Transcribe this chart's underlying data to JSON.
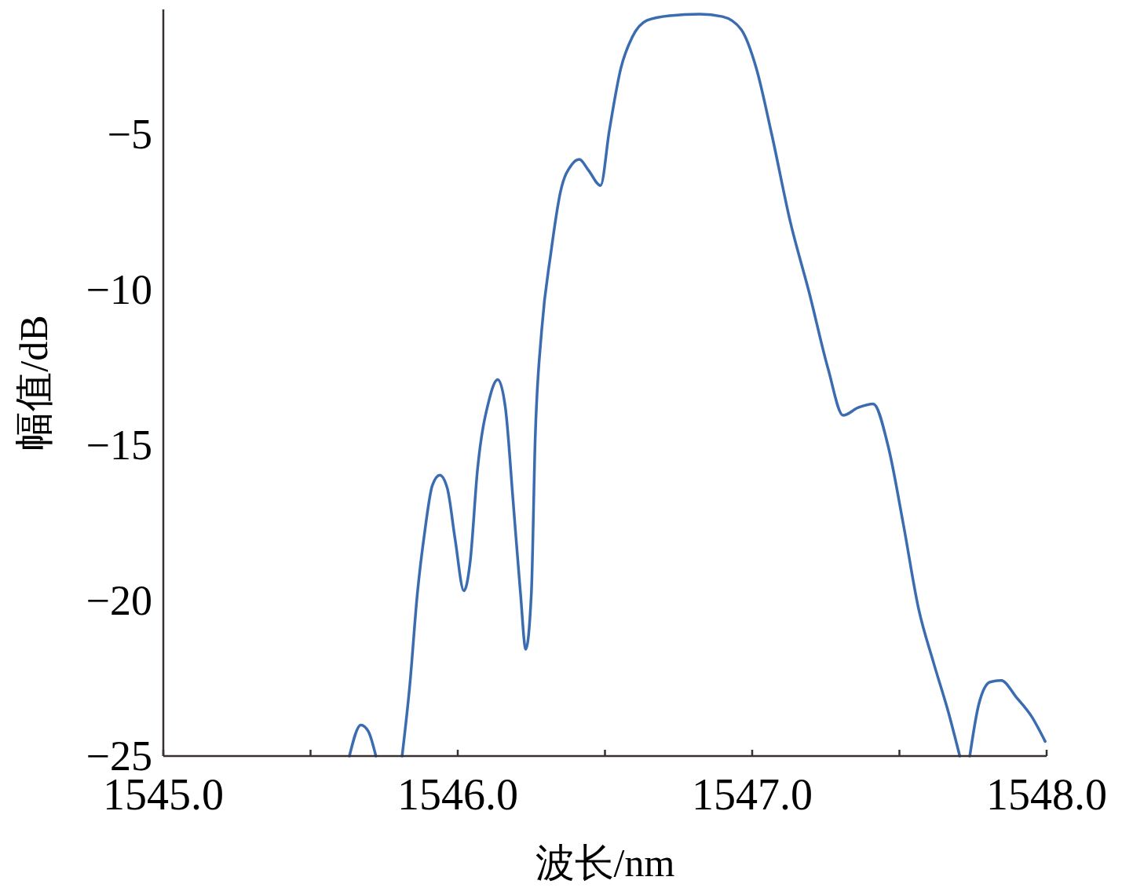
{
  "chart_data": {
    "type": "line",
    "xlabel": "波长/nm",
    "ylabel": "幅值/dB",
    "xlim": [
      1545.0,
      1548.0
    ],
    "ylim": [
      -25,
      -1
    ],
    "xticks": [
      {
        "value": 1545,
        "label": "1545.0"
      },
      {
        "value": 1545.5,
        "label": null
      },
      {
        "value": 1546,
        "label": "1546.0"
      },
      {
        "value": 1546.5,
        "label": null
      },
      {
        "value": 1547,
        "label": "1547.0"
      },
      {
        "value": 1547.5,
        "label": null
      },
      {
        "value": 1548,
        "label": "1548.0"
      }
    ],
    "yticks": [
      {
        "value": -25,
        "label": "−25"
      },
      {
        "value": -20,
        "label": "−20"
      },
      {
        "value": -15,
        "label": "−15"
      },
      {
        "value": -10,
        "label": "−10"
      },
      {
        "value": -5,
        "label": "−5"
      }
    ],
    "grid": false,
    "marker": "none",
    "line_style": "solid",
    "series": [
      {
        "color": "#3b6cb0",
        "x": [
          1545.632,
          1545.671,
          1545.696,
          1545.722
        ],
        "values": [
          -25,
          -24.0,
          -24.2,
          -25
        ]
      },
      {
        "color": "#3b6cb0",
        "x": [
          1545.811,
          1545.837,
          1545.863,
          1545.888,
          1545.914,
          1545.939,
          1545.965,
          1545.991,
          1546.021,
          1546.042,
          1546.067,
          1546.106,
          1546.136,
          1546.162,
          1546.188,
          1546.213,
          1546.231,
          1546.25,
          1546.263,
          1546.285,
          1546.316,
          1546.349,
          1546.387,
          1546.413,
          1546.444,
          1546.485,
          1546.515,
          1546.554,
          1546.592,
          1546.643,
          1546.72,
          1546.822,
          1546.899,
          1546.963,
          1547.014,
          1547.066,
          1547.13,
          1547.193,
          1547.258,
          1547.309,
          1547.36,
          1547.411,
          1547.462,
          1547.513,
          1547.565,
          1547.616,
          1547.667,
          1547.705
        ],
        "values": [
          -25,
          -22.74,
          -19.76,
          -17.78,
          -16.29,
          -15.97,
          -16.41,
          -18.03,
          -19.69,
          -18.77,
          -15.8,
          -13.57,
          -12.9,
          -13.82,
          -16.8,
          -19.76,
          -21.57,
          -19.76,
          -14.8,
          -11.32,
          -8.85,
          -6.86,
          -5.99,
          -5.82,
          -6.17,
          -6.66,
          -4.88,
          -2.89,
          -1.9,
          -1.35,
          -1.2,
          -1.15,
          -1.23,
          -1.65,
          -2.89,
          -5,
          -7.85,
          -10.08,
          -12.56,
          -14.05,
          -13.8,
          -13.68,
          -15.05,
          -17.53,
          -20.26,
          -22,
          -23.61,
          -25
        ]
      },
      {
        "color": "#3b6cb0",
        "x": [
          1547.739,
          1547.769,
          1547.808,
          1547.846,
          1547.897,
          1547.949,
          1547.995
        ],
        "values": [
          -25,
          -23.36,
          -22.62,
          -22.57,
          -23.11,
          -23.73,
          -24.53
        ]
      }
    ]
  }
}
